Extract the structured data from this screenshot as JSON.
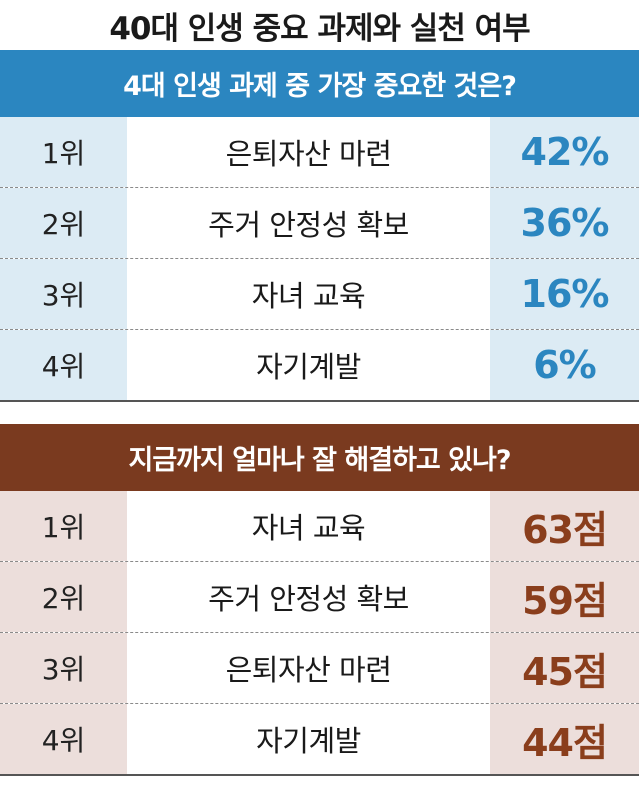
{
  "title": "40대 인생 중요 과제와 실천 여부",
  "colors": {
    "section1_header": "#2b86c0",
    "section1_cell": "#dcebf4",
    "section1_value": "#2b86c0",
    "section2_header": "#7a3a1f",
    "section2_cell": "#ecdedb",
    "section2_value": "#8a3e1c"
  },
  "section1": {
    "header": "4대 인생 과제 중 가장 중요한 것은?",
    "rows": [
      {
        "rank": "1위",
        "item": "은퇴자산 마련",
        "value": "42%"
      },
      {
        "rank": "2위",
        "item": "주거 안정성 확보",
        "value": "36%"
      },
      {
        "rank": "3위",
        "item": "자녀 교육",
        "value": "16%"
      },
      {
        "rank": "4위",
        "item": "자기계발",
        "value": "6%"
      }
    ]
  },
  "section2": {
    "header": "지금까지 얼마나 잘 해결하고 있나?",
    "rows": [
      {
        "rank": "1위",
        "item": "자녀 교육",
        "value": "63점"
      },
      {
        "rank": "2위",
        "item": "주거 안정성 확보",
        "value": "59점"
      },
      {
        "rank": "3위",
        "item": "은퇴자산 마련",
        "value": "45점"
      },
      {
        "rank": "4위",
        "item": "자기계발",
        "value": "44점"
      }
    ]
  }
}
